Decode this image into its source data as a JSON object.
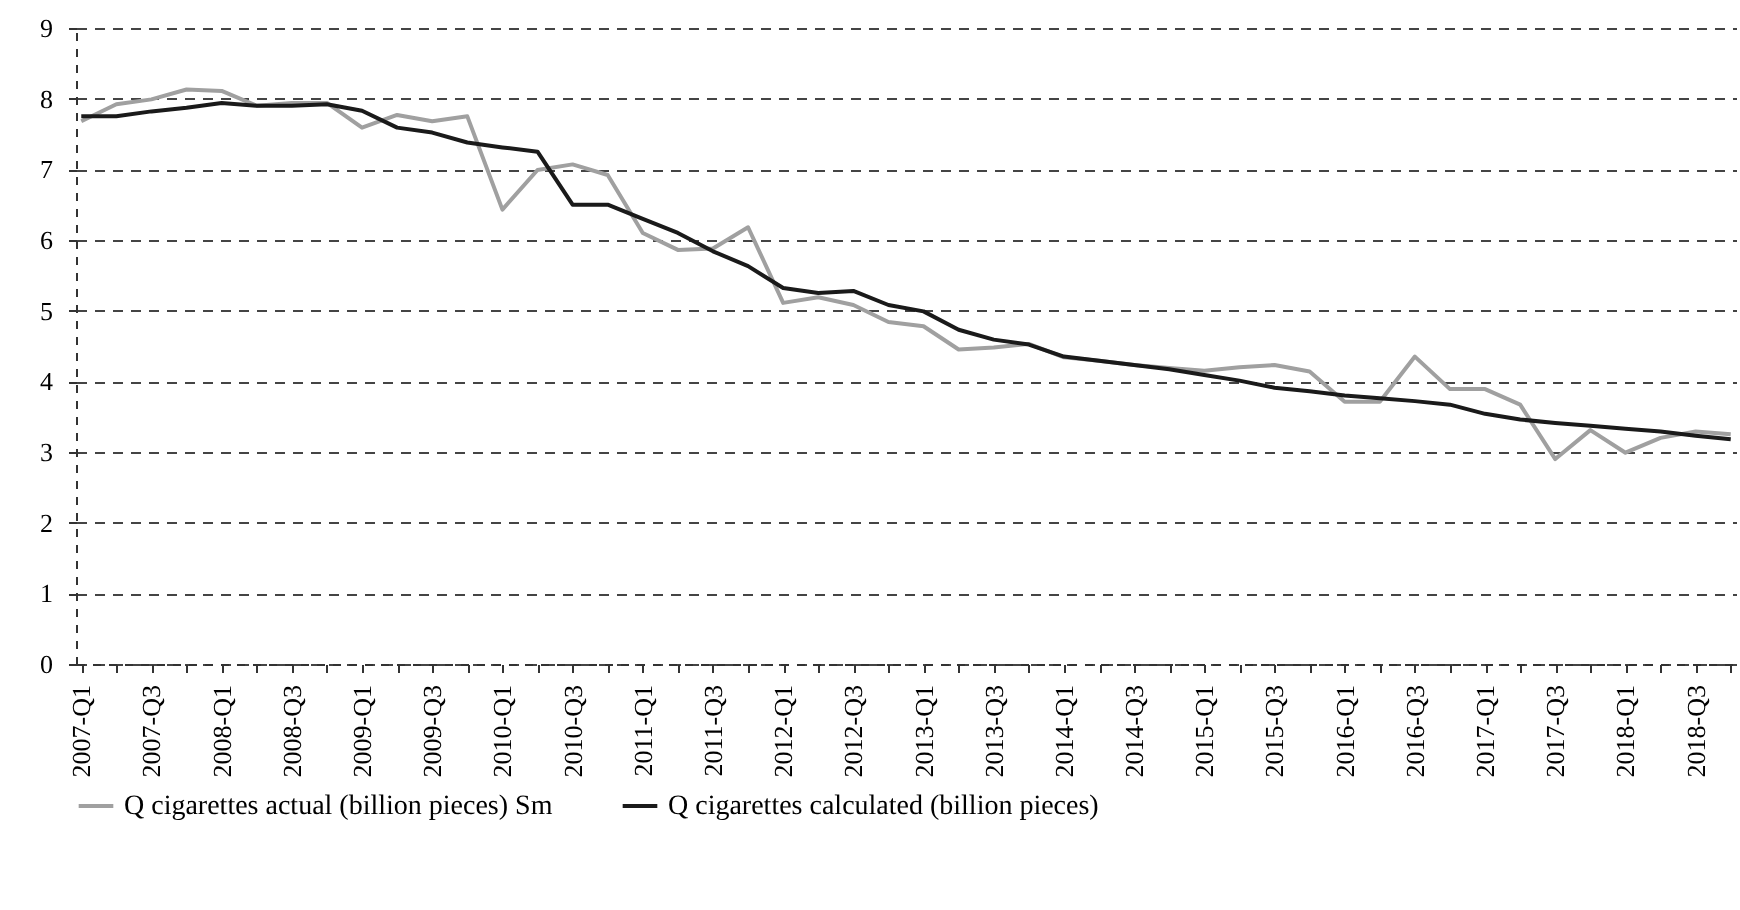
{
  "chart_data": {
    "type": "line",
    "categories": [
      "2007-Q1",
      null,
      "2007-Q3",
      null,
      "2008-Q1",
      null,
      "2008-Q3",
      null,
      "2009-Q1",
      null,
      "2009-Q3",
      null,
      "2010-Q1",
      null,
      "2010-Q3",
      null,
      "2011-Q1",
      null,
      "2011-Q3",
      null,
      "2012-Q1",
      null,
      "2012-Q3",
      null,
      "2013-Q1",
      null,
      "2013-Q3",
      null,
      "2014-Q1",
      null,
      "2014-Q3",
      null,
      "2015-Q1",
      null,
      "2015-Q3",
      null,
      "2016-Q1",
      null,
      "2016-Q3",
      null,
      "2017-Q1",
      null,
      "2017-Q3",
      null,
      "2018-Q1",
      null,
      "2018-Q3",
      null
    ],
    "series": [
      {
        "name": "Q cigarettes actual (billion pieces) Sm",
        "color": "#a0a0a0",
        "values": [
          7.68,
          7.92,
          7.99,
          8.13,
          8.11,
          7.9,
          7.94,
          7.94,
          7.59,
          7.77,
          7.68,
          7.75,
          6.43,
          6.99,
          7.07,
          6.92,
          6.1,
          5.86,
          5.88,
          6.18,
          5.11,
          5.19,
          5.08,
          4.84,
          4.78,
          4.45,
          4.48,
          4.53,
          4.34,
          4.29,
          4.23,
          4.19,
          4.15,
          4.2,
          4.23,
          4.14,
          3.71,
          3.71,
          4.35,
          3.89,
          3.89,
          3.67,
          2.9,
          3.31,
          2.99,
          3.2,
          3.29,
          3.25
        ]
      },
      {
        "name": "Q cigarettes calculated (billion pieces)",
        "color": "#1a1a1a",
        "values": [
          7.75,
          7.75,
          7.82,
          7.87,
          7.94,
          7.9,
          7.9,
          7.92,
          7.83,
          7.59,
          7.52,
          7.38,
          7.31,
          7.25,
          6.5,
          6.5,
          6.3,
          6.1,
          5.84,
          5.63,
          5.32,
          5.25,
          5.28,
          5.08,
          4.99,
          4.73,
          4.59,
          4.52,
          4.35,
          4.29,
          4.23,
          4.17,
          4.09,
          4.01,
          3.91,
          3.86,
          3.8,
          3.76,
          3.72,
          3.67,
          3.54,
          3.46,
          3.41,
          3.37,
          3.33,
          3.29,
          3.23,
          3.18
        ]
      }
    ],
    "ylim": [
      0,
      9
    ],
    "yticks": [
      0,
      1,
      2,
      3,
      4,
      5,
      6,
      7,
      8,
      9
    ],
    "grid": "y",
    "legend": "bottom",
    "line_style": "solid"
  }
}
